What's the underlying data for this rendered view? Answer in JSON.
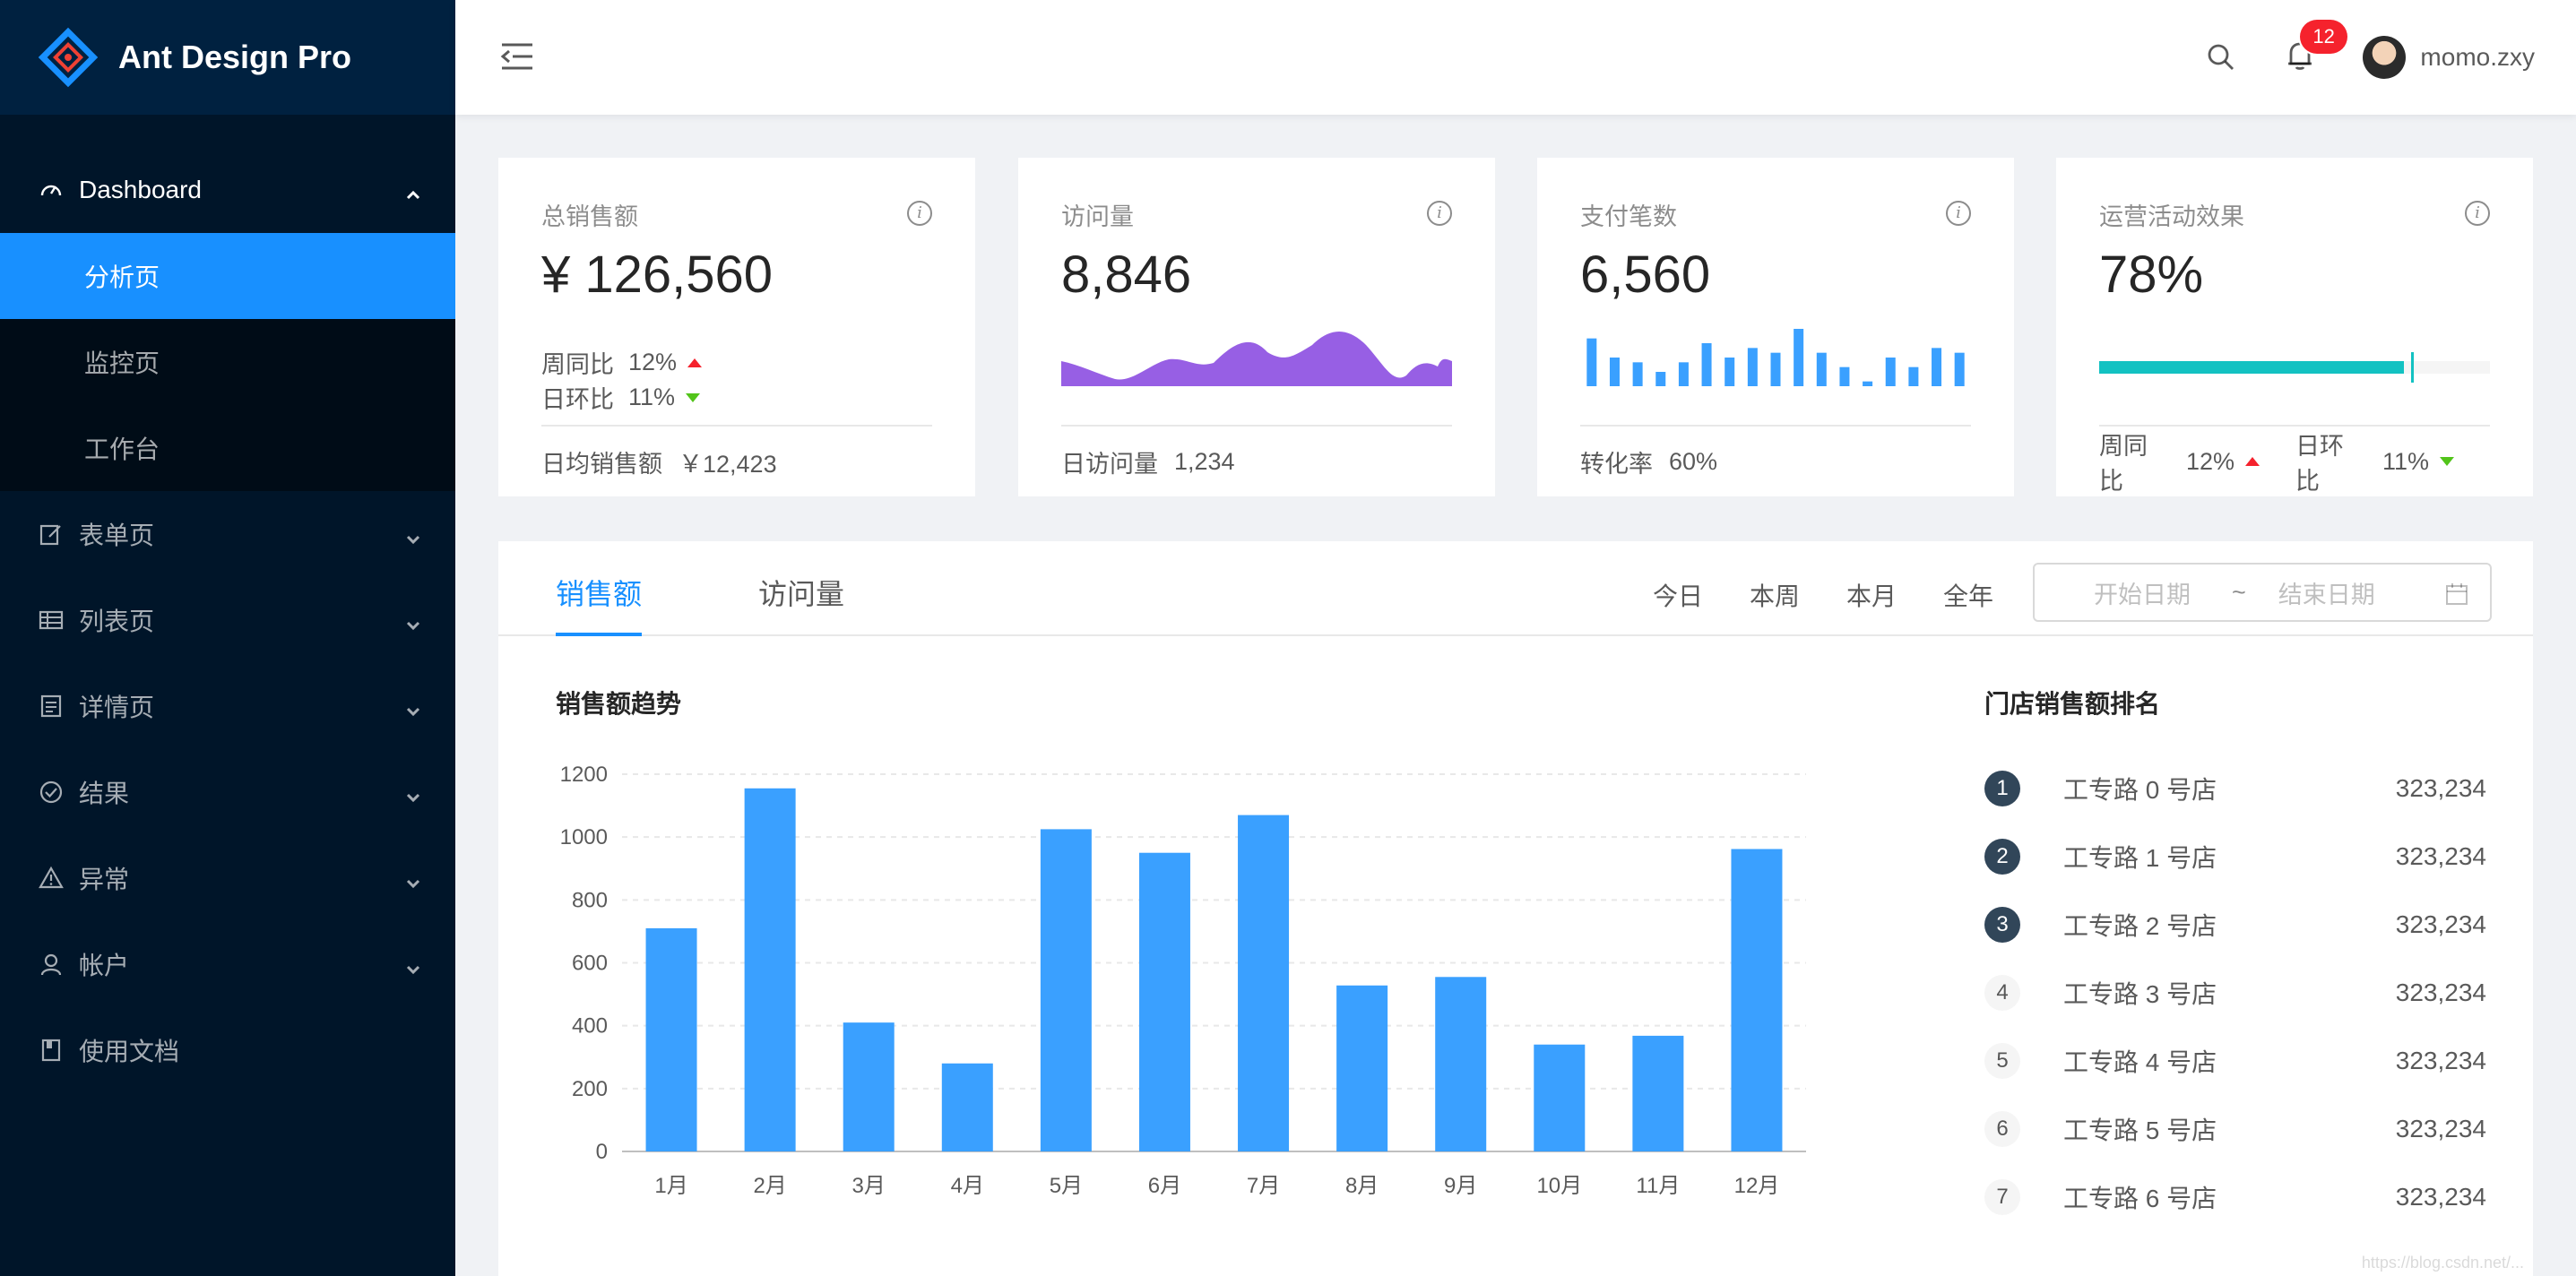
{
  "app": {
    "title": "Ant Design Pro"
  },
  "sidebar": {
    "items": [
      {
        "label": "Dashboard",
        "icon": "dashboard-icon"
      },
      {
        "label": "表单页",
        "icon": "form-icon"
      },
      {
        "label": "列表页",
        "icon": "table-icon"
      },
      {
        "label": "详情页",
        "icon": "profile-icon"
      },
      {
        "label": "结果",
        "icon": "check-circle-icon"
      },
      {
        "label": "异常",
        "icon": "warning-icon"
      },
      {
        "label": "帐户",
        "icon": "user-icon"
      },
      {
        "label": "使用文档",
        "icon": "book-icon"
      }
    ],
    "dashboard_children": [
      {
        "label": "分析页",
        "active": true
      },
      {
        "label": "监控页"
      },
      {
        "label": "工作台"
      }
    ]
  },
  "header": {
    "notification_count": "12",
    "username": "momo.zxy"
  },
  "cards": [
    {
      "title": "总销售额",
      "value": "¥ 126,560",
      "wow_label": "周同比",
      "wow_value": "12%",
      "dod_label": "日环比",
      "dod_value": "11%",
      "footer_label": "日均销售额",
      "footer_value": "￥12,423"
    },
    {
      "title": "访问量",
      "value": "8,846",
      "footer_label": "日访问量",
      "footer_value": "1,234"
    },
    {
      "title": "支付笔数",
      "value": "6,560",
      "footer_label": "转化率",
      "footer_value": "60%",
      "bars": [
        10,
        6,
        5,
        3,
        5,
        9,
        6,
        8,
        7,
        12,
        7,
        4,
        1,
        6,
        4,
        8,
        7
      ]
    },
    {
      "title": "运营活动效果",
      "value": "78%",
      "progress": 78,
      "target": 80,
      "wow_label": "周同比",
      "wow_value": "12%",
      "dod_label": "日环比",
      "dod_value": "11%"
    }
  ],
  "sales": {
    "tabs": [
      "销售额",
      "访问量"
    ],
    "ranges": [
      "今日",
      "本周",
      "本月",
      "全年"
    ],
    "date_start_placeholder": "开始日期",
    "date_separator": "~",
    "date_end_placeholder": "结束日期",
    "chart_title": "销售额趋势",
    "rank_title": "门店销售额排名",
    "ranking": [
      {
        "rank": "1",
        "name": "工专路 0 号店",
        "value": "323,234"
      },
      {
        "rank": "2",
        "name": "工专路 1 号店",
        "value": "323,234"
      },
      {
        "rank": "3",
        "name": "工专路 2 号店",
        "value": "323,234"
      },
      {
        "rank": "4",
        "name": "工专路 3 号店",
        "value": "323,234"
      },
      {
        "rank": "5",
        "name": "工专路 4 号店",
        "value": "323,234"
      },
      {
        "rank": "6",
        "name": "工专路 5 号店",
        "value": "323,234"
      },
      {
        "rank": "7",
        "name": "工专路 6 号店",
        "value": "323,234"
      }
    ]
  },
  "chart_data": {
    "type": "bar",
    "categories": [
      "1月",
      "2月",
      "3月",
      "4月",
      "5月",
      "6月",
      "7月",
      "8月",
      "9月",
      "10月",
      "11月",
      "12月"
    ],
    "values": [
      710,
      1155,
      410,
      280,
      1025,
      950,
      1070,
      528,
      555,
      340,
      368,
      962
    ],
    "ylim": [
      0,
      1200
    ],
    "yticks": [
      "0",
      "200",
      "400",
      "600",
      "800",
      "1000",
      "1200"
    ],
    "grid": true
  },
  "colors": {
    "primary": "#1890ff",
    "bar": "#3aa0ff",
    "area": "#975fe4",
    "progress": "#13c2c2",
    "sidebar": "#001529"
  },
  "watermark": "https://blog.csdn.net/..."
}
